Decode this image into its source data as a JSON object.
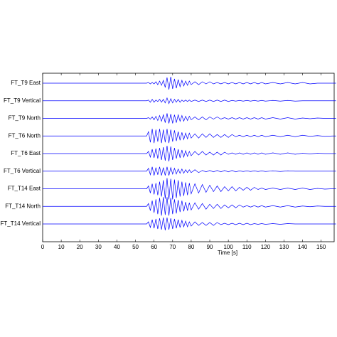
{
  "chart_data": {
    "type": "line",
    "x_label": "Time [s]",
    "x": [
      0,
      54,
      56,
      57,
      58,
      59,
      60,
      61,
      62,
      63,
      64,
      65,
      66,
      67,
      68,
      69,
      70,
      71,
      72,
      73,
      74,
      75,
      76,
      77,
      78,
      79,
      80,
      82,
      84,
      86,
      88,
      90,
      92,
      94,
      96,
      98,
      100,
      102,
      104,
      106,
      108,
      110,
      112,
      114,
      116,
      118,
      120,
      124,
      128,
      132,
      136,
      140,
      144,
      148,
      152,
      156,
      158
    ],
    "xlim": [
      0,
      157
    ],
    "xticks": [
      0,
      10,
      20,
      30,
      40,
      50,
      60,
      70,
      80,
      90,
      100,
      110,
      120,
      130,
      140,
      150
    ],
    "series": [
      {
        "name": "FT_T9 East",
        "color": "#0000ff",
        "values": [
          0,
          0,
          0,
          1,
          -1,
          1,
          -1,
          2,
          -2,
          3,
          -3,
          4,
          -6,
          8,
          -9,
          9,
          -8,
          6,
          -7,
          5,
          -5,
          4,
          -4,
          3,
          -3,
          3,
          -2,
          2,
          -2,
          2,
          -1,
          2,
          -1,
          1,
          -1,
          1,
          -1,
          1,
          -1,
          1,
          -1,
          1,
          -1,
          1,
          -1,
          1,
          -1,
          1,
          -1,
          1,
          -1,
          1,
          -1,
          0,
          0,
          0,
          0
        ]
      },
      {
        "name": "FT_T9 Vertical",
        "color": "#0000ff",
        "values": [
          0,
          0,
          0,
          1,
          -2,
          2,
          -2,
          1,
          -1,
          2,
          -2,
          2,
          -3,
          4,
          -4,
          3,
          -3,
          2,
          -2,
          2,
          -2,
          1,
          -1,
          1,
          -1,
          1,
          -1,
          1,
          -1,
          1,
          -1,
          1,
          -1,
          1,
          -1,
          1,
          -1,
          0.5,
          -0.5,
          0.5,
          -0.5,
          0.5,
          -0.5,
          0.5,
          -0.5,
          0.5,
          -0.5,
          0.5,
          -0.5,
          0.5,
          -0.5,
          0,
          0,
          0,
          0,
          0,
          0
        ]
      },
      {
        "name": "FT_T9 North",
        "color": "#0000ff",
        "values": [
          0,
          0,
          0,
          1,
          -1,
          2,
          -2,
          3,
          -3,
          4,
          -4,
          5,
          -6,
          7,
          -7,
          6,
          -7,
          5,
          -6,
          5,
          -4,
          4,
          -4,
          3,
          -3,
          3,
          -2,
          2,
          -2,
          2,
          -2,
          2,
          -1,
          2,
          -1,
          1,
          -1,
          1,
          -1,
          1,
          -1,
          1,
          -1,
          1,
          -1,
          1,
          -1,
          1,
          -1,
          1,
          -1,
          0.5,
          -0.5,
          0.5,
          0,
          0,
          0
        ]
      },
      {
        "name": "FT_T6 North",
        "color": "#0000ff",
        "values": [
          0,
          0,
          0,
          6,
          -9,
          10,
          -10,
          9,
          -8,
          10,
          -10,
          9,
          -9,
          10,
          -10,
          9,
          -8,
          8,
          -7,
          6,
          -6,
          5,
          -5,
          4,
          -4,
          4,
          -3,
          3,
          -3,
          3,
          -2,
          3,
          -2,
          2,
          -2,
          2,
          -2,
          2,
          -1,
          1,
          -1,
          1,
          -1,
          1,
          -1,
          1,
          -1,
          1,
          -1,
          1,
          -1,
          1,
          -0.5,
          0.5,
          -0.5,
          0,
          0
        ]
      },
      {
        "name": "FT_T6 East",
        "color": "#0000ff",
        "values": [
          0,
          0,
          0,
          3,
          -5,
          6,
          -6,
          7,
          -7,
          8,
          -9,
          9,
          -10,
          11,
          -11,
          10,
          -9,
          8,
          -7,
          6,
          -6,
          5,
          -5,
          4,
          -4,
          3,
          -3,
          3,
          -2,
          3,
          -2,
          2,
          -2,
          2,
          -2,
          2,
          -1,
          1,
          -1,
          1,
          -1,
          1,
          -1,
          1,
          -1,
          1,
          -1,
          1,
          -1,
          1,
          -1,
          0.5,
          -0.5,
          0.5,
          0,
          0,
          0
        ]
      },
      {
        "name": "FT_T6 Vertical",
        "color": "#0000ff",
        "values": [
          0,
          0,
          0,
          4,
          -5,
          6,
          -6,
          5,
          -5,
          6,
          -6,
          5,
          -6,
          6,
          -6,
          5,
          -4,
          4,
          -4,
          3,
          -3,
          3,
          -3,
          2,
          -2,
          2,
          -2,
          2,
          -2,
          1,
          -1,
          1,
          -1,
          1,
          -1,
          1,
          -1,
          1,
          -1,
          0.5,
          -0.5,
          0.5,
          -0.5,
          0.5,
          -0.5,
          0.5,
          -0.5,
          0.5,
          -0.5,
          0.5,
          0,
          0,
          0,
          0,
          0,
          0,
          0
        ]
      },
      {
        "name": "FT_T14 East",
        "color": "#0000ff",
        "values": [
          0,
          0,
          0,
          4,
          -6,
          7,
          -8,
          8,
          -9,
          10,
          -11,
          12,
          -14,
          15,
          -15,
          14,
          -15,
          13,
          -13,
          12,
          -11,
          10,
          -10,
          9,
          -9,
          8,
          -7,
          7,
          -6,
          6,
          -5,
          5,
          -4,
          4,
          -4,
          3,
          -3,
          3,
          -3,
          2,
          -2,
          2,
          -2,
          2,
          -1,
          1,
          -1,
          1,
          -1,
          1,
          -1,
          1,
          -1,
          0.5,
          -0.5,
          0,
          0
        ]
      },
      {
        "name": "FT_T14 North",
        "color": "#0000ff",
        "values": [
          0,
          0,
          0,
          4,
          -6,
          8,
          -9,
          10,
          -11,
          12,
          -13,
          13,
          -12,
          13,
          -13,
          12,
          -11,
          10,
          -10,
          9,
          -8,
          8,
          -7,
          6,
          -6,
          5,
          -5,
          5,
          -4,
          4,
          -4,
          3,
          -3,
          3,
          -3,
          2,
          -2,
          2,
          -2,
          2,
          -1,
          1,
          -1,
          1,
          -1,
          1,
          -1,
          1,
          -1,
          1,
          -1,
          0.5,
          -0.5,
          0.5,
          0,
          0,
          0
        ]
      },
      {
        "name": "FT_T14 Vertical",
        "color": "#0000ff",
        "values": [
          0,
          0,
          0,
          3,
          -5,
          6,
          -6,
          7,
          -7,
          8,
          -8,
          9,
          -9,
          9,
          -8,
          8,
          -7,
          7,
          -6,
          6,
          -5,
          5,
          -4,
          4,
          -4,
          3,
          -3,
          3,
          -2,
          2,
          -2,
          2,
          -2,
          2,
          -1,
          1,
          -1,
          1,
          -1,
          1,
          -1,
          1,
          -1,
          0.5,
          -0.5,
          0.5,
          -0.5,
          0.5,
          -0.5,
          0.5,
          0,
          0,
          0,
          0,
          0,
          0,
          0
        ]
      }
    ]
  }
}
